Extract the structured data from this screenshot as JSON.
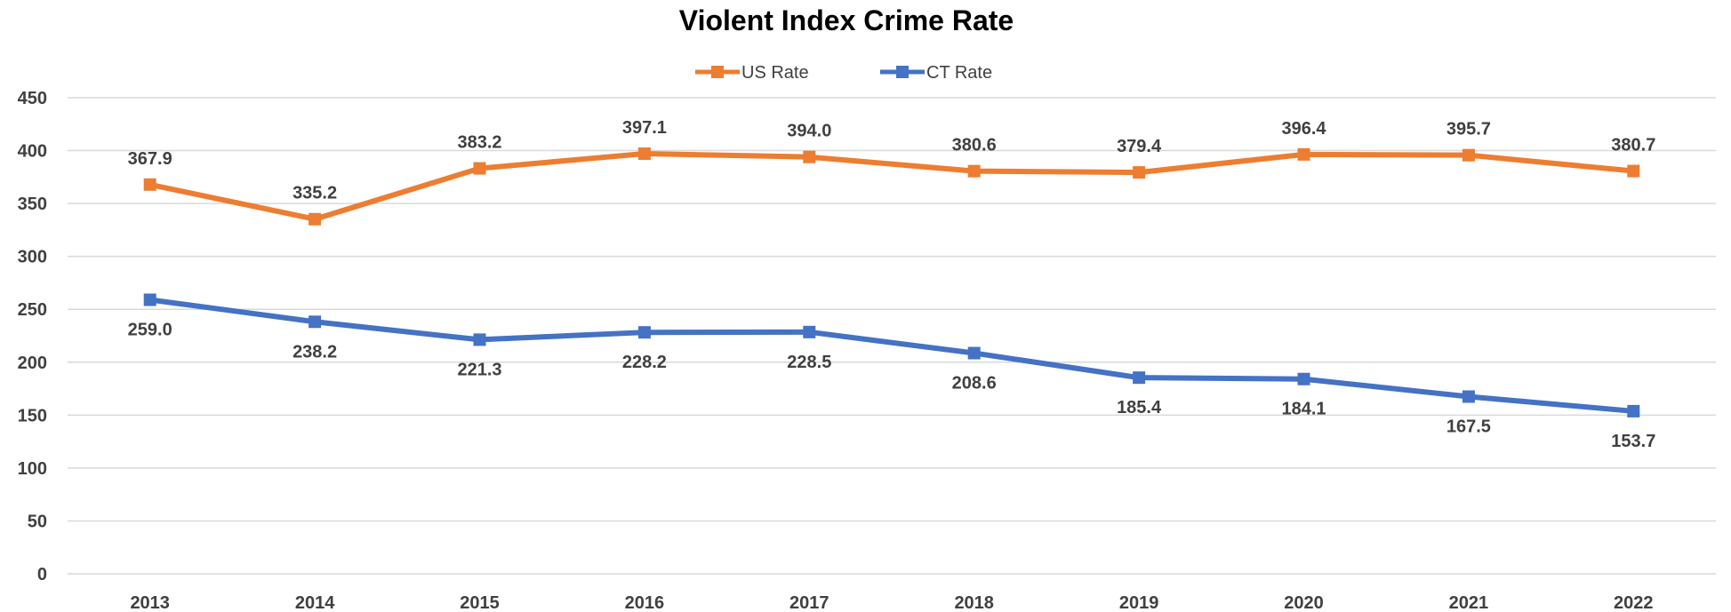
{
  "chart_data": {
    "type": "line",
    "title": "Violent Index Crime Rate",
    "categories": [
      "2013",
      "2014",
      "2015",
      "2016",
      "2017",
      "2018",
      "2019",
      "2020",
      "2021",
      "2022"
    ],
    "series": [
      {
        "name": "US Rate",
        "color": "#ed7d31",
        "values": [
          367.9,
          335.2,
          383.2,
          397.1,
          394.0,
          380.6,
          379.4,
          396.4,
          395.7,
          380.7
        ],
        "labels": [
          "367.9",
          "335.2",
          "383.2",
          "397.1",
          "394.0",
          "380.6",
          "379.4",
          "396.4",
          "395.7",
          "380.7"
        ],
        "label_position": "above"
      },
      {
        "name": "CT Rate",
        "color": "#4472c4",
        "values": [
          259.0,
          238.2,
          221.3,
          228.2,
          228.5,
          208.6,
          185.4,
          184.1,
          167.5,
          153.7
        ],
        "labels": [
          "259.0",
          "238.2",
          "221.3",
          "228.2",
          "228.5",
          "208.6",
          "185.4",
          "184.1",
          "167.5",
          "153.7"
        ],
        "label_position": "below"
      }
    ],
    "ylim": [
      0,
      450
    ],
    "yticks": [
      "0",
      "50",
      "100",
      "150",
      "200",
      "250",
      "300",
      "350",
      "400",
      "450"
    ],
    "grid": true,
    "legend": "top-center",
    "marker": "square"
  }
}
